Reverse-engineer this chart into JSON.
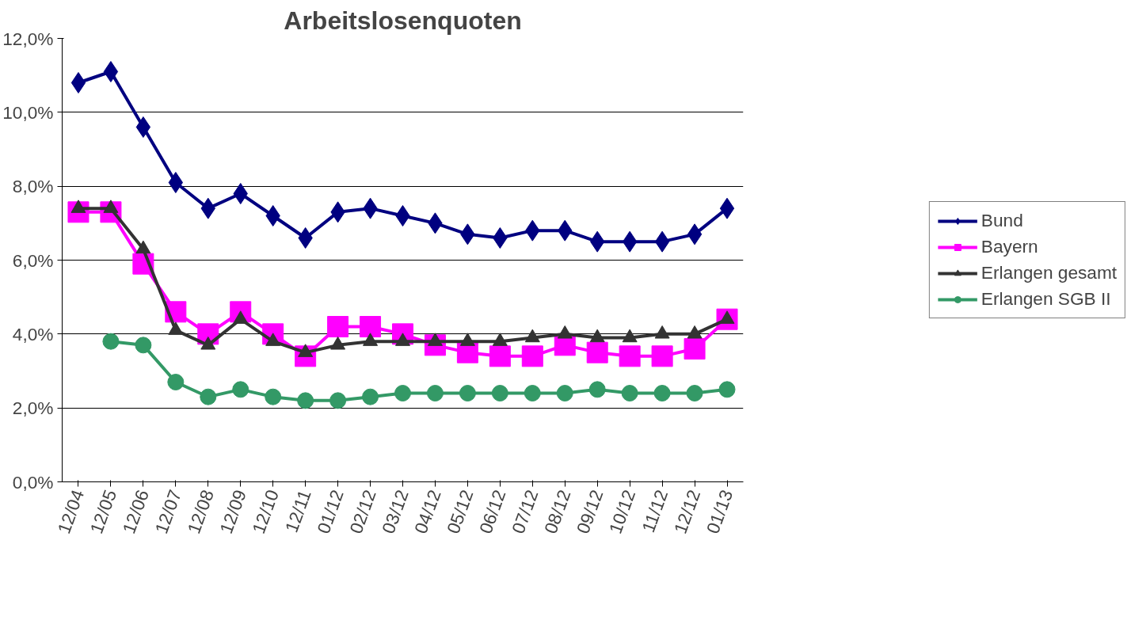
{
  "chart_data": {
    "type": "line",
    "title": "Arbeitslosenquoten",
    "categories": [
      "12/04",
      "12/05",
      "12/06",
      "12/07",
      "12/08",
      "12/09",
      "12/10",
      "12/11",
      "01/12",
      "02/12",
      "03/12",
      "04/12",
      "05/12",
      "06/12",
      "07/12",
      "08/12",
      "09/12",
      "10/12",
      "11/12",
      "12/12",
      "01/13"
    ],
    "series": [
      {
        "name": "Bund",
        "color": "#000080",
        "marker": "diamond",
        "values": [
          10.8,
          11.1,
          9.6,
          8.1,
          7.4,
          7.8,
          7.2,
          6.6,
          7.3,
          7.4,
          7.2,
          7.0,
          6.7,
          6.6,
          6.8,
          6.8,
          6.5,
          6.5,
          6.5,
          6.7,
          7.4
        ]
      },
      {
        "name": "Bayern",
        "color": "#ff00ff",
        "marker": "square",
        "values": [
          7.3,
          7.3,
          5.9,
          4.6,
          4.0,
          4.6,
          4.0,
          3.4,
          4.2,
          4.2,
          4.0,
          3.7,
          3.5,
          3.4,
          3.4,
          3.7,
          3.5,
          3.4,
          3.4,
          3.6,
          4.4
        ]
      },
      {
        "name": "Erlangen gesamt",
        "color": "#333333",
        "marker": "triangle",
        "values": [
          7.4,
          7.4,
          6.3,
          4.1,
          3.7,
          4.4,
          3.8,
          3.5,
          3.7,
          3.8,
          3.8,
          3.8,
          3.8,
          3.8,
          3.9,
          4.0,
          3.9,
          3.9,
          4.0,
          4.0,
          4.4
        ]
      },
      {
        "name": "Erlangen SGB II",
        "color": "#339966",
        "marker": "circle",
        "values": [
          null,
          3.8,
          3.7,
          2.7,
          2.3,
          2.5,
          2.3,
          2.2,
          2.2,
          2.3,
          2.4,
          2.4,
          2.4,
          2.4,
          2.4,
          2.4,
          2.5,
          2.4,
          2.4,
          2.4,
          2.5
        ]
      }
    ],
    "ylim": [
      0,
      12
    ],
    "yticks": [
      {
        "value": 0,
        "label": "0,0%"
      },
      {
        "value": 2,
        "label": "2,0%"
      },
      {
        "value": 4,
        "label": "4,0%"
      },
      {
        "value": 6,
        "label": "6,0%"
      },
      {
        "value": 8,
        "label": "8,0%"
      },
      {
        "value": 10,
        "label": "10,0%"
      },
      {
        "value": 12,
        "label": "12,0%"
      }
    ],
    "grid": "y",
    "legend": "right",
    "line_style": "solid"
  }
}
